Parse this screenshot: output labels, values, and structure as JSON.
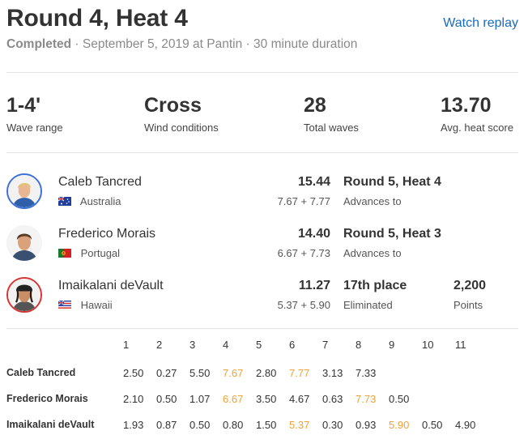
{
  "heat": {
    "title": "Round 4, Heat 4",
    "replay_label": "Watch replay",
    "status": "Completed",
    "separator": "·",
    "date_location": "September 5, 2019 at Pantin",
    "duration": "30 minute duration"
  },
  "stats": [
    {
      "value": "1-4'",
      "label": "Wave range"
    },
    {
      "value": "Cross",
      "label": "Wind conditions"
    },
    {
      "value": "28",
      "label": "Total waves"
    },
    {
      "value": "13.70",
      "label": "Avg. heat score"
    }
  ],
  "surfers": [
    {
      "name": "Caleb Tancred",
      "country": "Australia",
      "flag_icon": "australia-flag-icon",
      "total": "15.44",
      "breakdown": "7.67 + 7.77",
      "result": "Round 5, Heat 4",
      "result_sub": "Advances to",
      "ring_color": "#3a6fd8"
    },
    {
      "name": "Frederico Morais",
      "country": "Portugal",
      "flag_icon": "portugal-flag-icon",
      "total": "14.40",
      "breakdown": "6.67 + 7.73",
      "result": "Round 5, Heat 3",
      "result_sub": "Advances to",
      "ring_color": "#ffffff"
    },
    {
      "name": "Imaikalani deVault",
      "country": "Hawaii",
      "flag_icon": "hawaii-flag-icon",
      "total": "11.27",
      "breakdown": "5.37 + 5.90",
      "result": "17th place",
      "result_sub": "Eliminated",
      "points": "2,200",
      "points_label": "Points",
      "ring_color": "#d63333"
    }
  ],
  "wave_table": {
    "wave_numbers": [
      "1",
      "2",
      "3",
      "4",
      "5",
      "6",
      "7",
      "8",
      "9",
      "10",
      "11"
    ],
    "highlight_color": "#f0a23a",
    "rows": [
      {
        "name": "Caleb Tancred",
        "scores": [
          "2.50",
          "0.27",
          "5.50",
          "7.67",
          "2.80",
          "7.77",
          "3.13",
          "7.33",
          "",
          "",
          ""
        ],
        "highlighted": [
          3,
          5
        ]
      },
      {
        "name": "Frederico Morais",
        "scores": [
          "2.10",
          "0.50",
          "1.07",
          "6.67",
          "3.50",
          "4.67",
          "0.63",
          "7.73",
          "0.50",
          "",
          ""
        ],
        "highlighted": [
          3,
          7
        ]
      },
      {
        "name": "Imaikalani deVault",
        "scores": [
          "1.93",
          "0.87",
          "0.50",
          "0.80",
          "1.50",
          "5.37",
          "0.30",
          "0.93",
          "5.90",
          "0.50",
          "4.90"
        ],
        "highlighted": [
          5,
          8
        ]
      }
    ]
  }
}
